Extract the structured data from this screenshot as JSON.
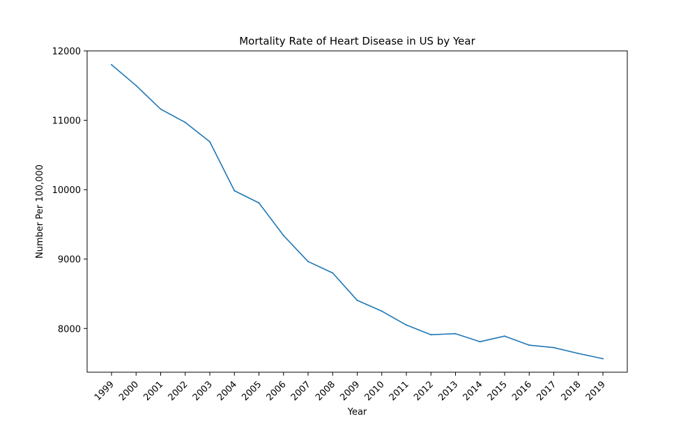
{
  "chart_data": {
    "type": "line",
    "title": "Mortality Rate of Heart Disease in US by Year",
    "xlabel": "Year",
    "ylabel": "Number Per 100,000",
    "categories": [
      "1999",
      "2000",
      "2001",
      "2002",
      "2003",
      "2004",
      "2005",
      "2006",
      "2007",
      "2008",
      "2009",
      "2010",
      "2011",
      "2012",
      "2013",
      "2014",
      "2015",
      "2016",
      "2017",
      "2018",
      "2019"
    ],
    "series": [
      {
        "values": [
          11800,
          11500,
          11160,
          10970,
          10690,
          9985,
          9810,
          9340,
          8965,
          8800,
          8405,
          8250,
          8050,
          7910,
          7925,
          7810,
          7890,
          7760,
          7725,
          7640,
          7565
        ],
        "color": "#1f77b4"
      }
    ],
    "ylim": [
      7370,
      12000
    ],
    "yticks": [
      8000,
      9000,
      10000,
      11000,
      12000
    ],
    "grid": false,
    "legend": "none"
  }
}
